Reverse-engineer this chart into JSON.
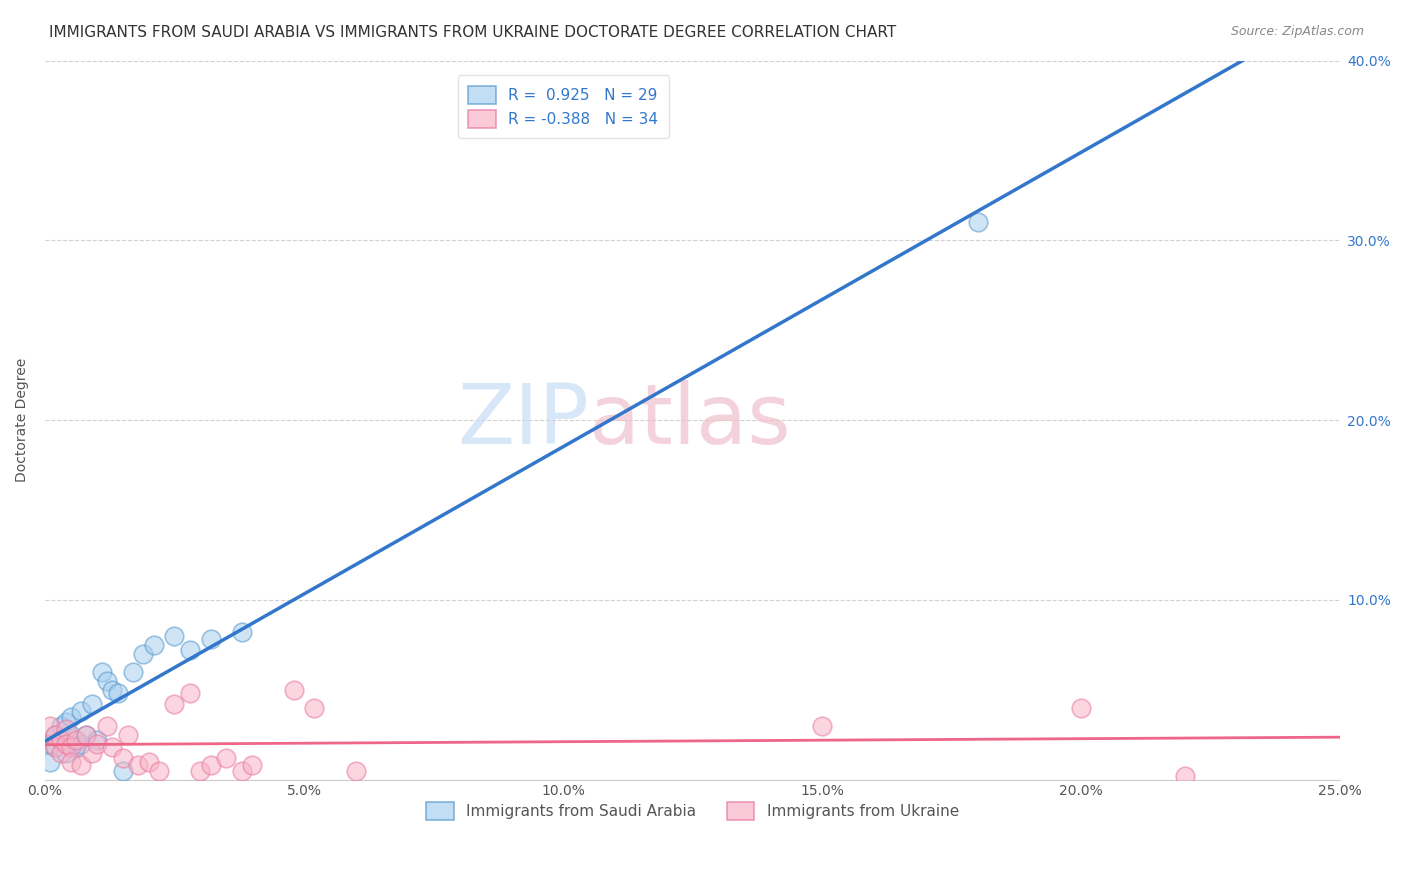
{
  "title": "IMMIGRANTS FROM SAUDI ARABIA VS IMMIGRANTS FROM UKRAINE DOCTORATE DEGREE CORRELATION CHART",
  "source": "Source: ZipAtlas.com",
  "ylabel": "Doctorate Degree",
  "watermark_zip": "ZIP",
  "watermark_atlas": "atlas",
  "xlim": [
    0.0,
    0.25
  ],
  "ylim": [
    0.0,
    0.4
  ],
  "xticks": [
    0.0,
    0.05,
    0.1,
    0.15,
    0.2,
    0.25
  ],
  "yticks": [
    0.0,
    0.1,
    0.2,
    0.3,
    0.4
  ],
  "ytick_labels": [
    "",
    "10.0%",
    "20.0%",
    "30.0%",
    "40.0%"
  ],
  "xtick_labels": [
    "0.0%",
    "5.0%",
    "10.0%",
    "15.0%",
    "20.0%",
    "25.0%"
  ],
  "legend1_label": "R =  0.925   N = 29",
  "legend2_label": "R = -0.388   N = 34",
  "legend_bottom1": "Immigrants from Saudi Arabia",
  "legend_bottom2": "Immigrants from Ukraine",
  "saudi_color": "#a8d0f0",
  "ukraine_color": "#f8b4c8",
  "saudi_edge_color": "#5599cc",
  "ukraine_edge_color": "#e878a0",
  "saudi_line_color": "#3377cc",
  "ukraine_line_color": "#ee6688",
  "background_color": "#ffffff",
  "grid_color": "#cccccc",
  "title_fontsize": 11,
  "axis_label_fontsize": 10,
  "tick_fontsize": 10,
  "saudi_x": [
    0.001,
    0.002,
    0.002,
    0.003,
    0.003,
    0.004,
    0.004,
    0.005,
    0.005,
    0.006,
    0.007,
    0.007,
    0.008,
    0.009,
    0.01,
    0.011,
    0.012,
    0.013,
    0.014,
    0.015,
    0.017,
    0.019,
    0.021,
    0.025,
    0.028,
    0.032,
    0.038,
    0.18,
    0.001
  ],
  "saudi_y": [
    0.02,
    0.025,
    0.018,
    0.022,
    0.03,
    0.015,
    0.032,
    0.035,
    0.025,
    0.018,
    0.02,
    0.038,
    0.025,
    0.042,
    0.022,
    0.06,
    0.055,
    0.05,
    0.048,
    0.005,
    0.06,
    0.07,
    0.075,
    0.08,
    0.072,
    0.078,
    0.082,
    0.31,
    0.01
  ],
  "ukraine_x": [
    0.001,
    0.002,
    0.002,
    0.003,
    0.003,
    0.004,
    0.004,
    0.005,
    0.005,
    0.006,
    0.007,
    0.008,
    0.009,
    0.01,
    0.012,
    0.013,
    0.015,
    0.016,
    0.018,
    0.02,
    0.022,
    0.025,
    0.028,
    0.03,
    0.032,
    0.035,
    0.038,
    0.04,
    0.048,
    0.052,
    0.06,
    0.15,
    0.2,
    0.22
  ],
  "ukraine_y": [
    0.03,
    0.025,
    0.018,
    0.022,
    0.015,
    0.028,
    0.02,
    0.018,
    0.01,
    0.022,
    0.008,
    0.025,
    0.015,
    0.02,
    0.03,
    0.018,
    0.012,
    0.025,
    0.008,
    0.01,
    0.005,
    0.042,
    0.048,
    0.005,
    0.008,
    0.012,
    0.005,
    0.008,
    0.05,
    0.04,
    0.005,
    0.03,
    0.04,
    0.002
  ]
}
